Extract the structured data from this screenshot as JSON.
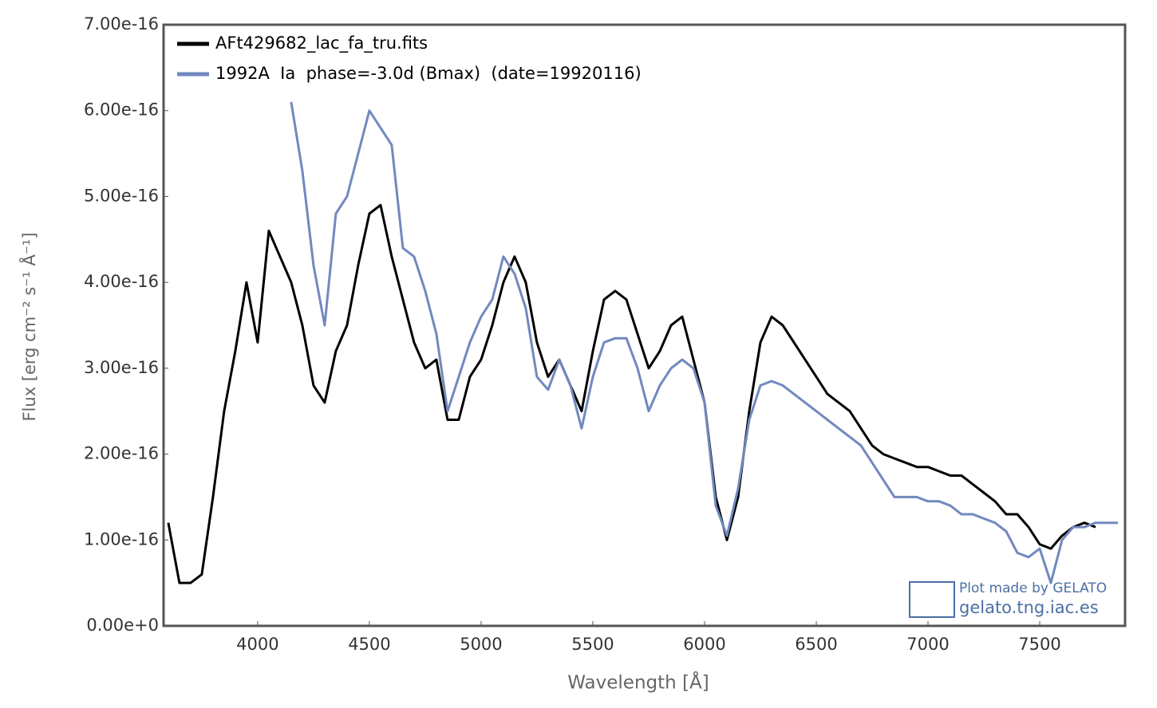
{
  "chart_data": {
    "type": "line",
    "x_label": "Wavelength [Å]",
    "y_label": "Flux [erg cm⁻² s⁻¹ Å⁻¹]",
    "annotations": [
      "Plot made by GELATO",
      "gelato.tng.iac.es"
    ],
    "x": [
      3600,
      3650,
      3700,
      3750,
      3800,
      3850,
      3900,
      3950,
      4000,
      4050,
      4100,
      4150,
      4200,
      4250,
      4300,
      4350,
      4400,
      4450,
      4500,
      4550,
      4600,
      4650,
      4700,
      4750,
      4800,
      4850,
      4900,
      4950,
      5000,
      5050,
      5100,
      5150,
      5200,
      5250,
      5300,
      5350,
      5400,
      5450,
      5500,
      5550,
      5600,
      5650,
      5700,
      5750,
      5800,
      5850,
      5900,
      5950,
      6000,
      6050,
      6100,
      6150,
      6200,
      6250,
      6300,
      6350,
      6400,
      6450,
      6500,
      6550,
      6600,
      6650,
      6700,
      6750,
      6800,
      6850,
      6900,
      6950,
      7000,
      7050,
      7100,
      7150,
      7200,
      7250,
      7300,
      7350,
      7400,
      7450,
      7500,
      7550,
      7600,
      7650,
      7700,
      7750,
      7800,
      7850
    ],
    "series": [
      {
        "name": "AFt429682_lac_fa_tru.fits",
        "color": "#000000",
        "values": [
          1.2e-16,
          5e-17,
          5e-17,
          6e-17,
          1.5e-16,
          2.5e-16,
          3.2e-16,
          4e-16,
          3.3e-16,
          4.6e-16,
          4.3e-16,
          4e-16,
          3.5e-16,
          2.8e-16,
          2.6e-16,
          3.2e-16,
          3.5e-16,
          4.2e-16,
          4.8e-16,
          4.9e-16,
          4.3e-16,
          3.8e-16,
          3.3e-16,
          3e-16,
          3.1e-16,
          2.4e-16,
          2.4e-16,
          2.9e-16,
          3.1e-16,
          3.5e-16,
          4e-16,
          4.3e-16,
          4e-16,
          3.3e-16,
          2.9e-16,
          3.1e-16,
          2.8e-16,
          2.5e-16,
          3.2e-16,
          3.8e-16,
          3.9e-16,
          3.8e-16,
          3.4e-16,
          3e-16,
          3.2e-16,
          3.5e-16,
          3.6e-16,
          3.1e-16,
          2.6e-16,
          1.5e-16,
          1e-16,
          1.5e-16,
          2.5e-16,
          3.3e-16,
          3.6e-16,
          3.5e-16,
          3.3e-16,
          3.1e-16,
          2.9e-16,
          2.7e-16,
          2.6e-16,
          2.5e-16,
          2.3e-16,
          2.1e-16,
          2e-16,
          1.95e-16,
          1.9e-16,
          1.85e-16,
          1.85e-16,
          1.8e-16,
          1.75e-16,
          1.75e-16,
          1.65e-16,
          1.55e-16,
          1.45e-16,
          1.3e-16,
          1.3e-16,
          1.15e-16,
          9.5e-17,
          9e-17,
          1.05e-16,
          1.15e-16,
          1.2e-16,
          1.15e-16,
          null,
          null
        ]
      },
      {
        "name": "1992A  Ia  phase=-3.0d (Bmax)  (date=19920116)",
        "color": "#7189bf",
        "values": [
          null,
          null,
          null,
          null,
          null,
          null,
          null,
          null,
          null,
          null,
          null,
          6.1e-16,
          5.3e-16,
          4.2e-16,
          3.5e-16,
          4.8e-16,
          5e-16,
          5.5e-16,
          6e-16,
          5.8e-16,
          5.6e-16,
          4.4e-16,
          4.3e-16,
          3.9e-16,
          3.4e-16,
          2.5e-16,
          2.9e-16,
          3.3e-16,
          3.6e-16,
          3.8e-16,
          4.3e-16,
          4.1e-16,
          3.7e-16,
          2.9e-16,
          2.75e-16,
          3.1e-16,
          2.8e-16,
          2.3e-16,
          2.9e-16,
          3.3e-16,
          3.35e-16,
          3.35e-16,
          3e-16,
          2.5e-16,
          2.8e-16,
          3e-16,
          3.1e-16,
          3e-16,
          2.6e-16,
          1.4e-16,
          1.05e-16,
          1.6e-16,
          2.4e-16,
          2.8e-16,
          2.85e-16,
          2.8e-16,
          2.7e-16,
          2.6e-16,
          2.5e-16,
          2.4e-16,
          2.3e-16,
          2.2e-16,
          2.1e-16,
          1.9e-16,
          1.7e-16,
          1.5e-16,
          1.5e-16,
          1.5e-16,
          1.45e-16,
          1.45e-16,
          1.4e-16,
          1.3e-16,
          1.3e-16,
          1.25e-16,
          1.2e-16,
          1.1e-16,
          8.5e-17,
          8e-17,
          9e-17,
          5e-17,
          1e-16,
          1.15e-16,
          1.15e-16,
          1.2e-16,
          1.2e-16,
          1.2e-16
        ]
      }
    ],
    "xlim": [
      3579,
      7882
    ],
    "ylim": [
      0,
      7e-16
    ],
    "xticks": [
      4000,
      4500,
      5000,
      5500,
      6000,
      6500,
      7000,
      7500
    ],
    "yticks": [
      {
        "value": 0,
        "label": "0.00e+0"
      },
      {
        "value": 1e-16,
        "label": "1.00e-16"
      },
      {
        "value": 2e-16,
        "label": "2.00e-16"
      },
      {
        "value": 3e-16,
        "label": "3.00e-16"
      },
      {
        "value": 4e-16,
        "label": "4.00e-16"
      },
      {
        "value": 5e-16,
        "label": "5.00e-16"
      },
      {
        "value": 6e-16,
        "label": "6.00e-16"
      },
      {
        "value": 7e-16,
        "label": "7.00e-16"
      }
    ],
    "legend": "upper-left",
    "grid": false
  }
}
